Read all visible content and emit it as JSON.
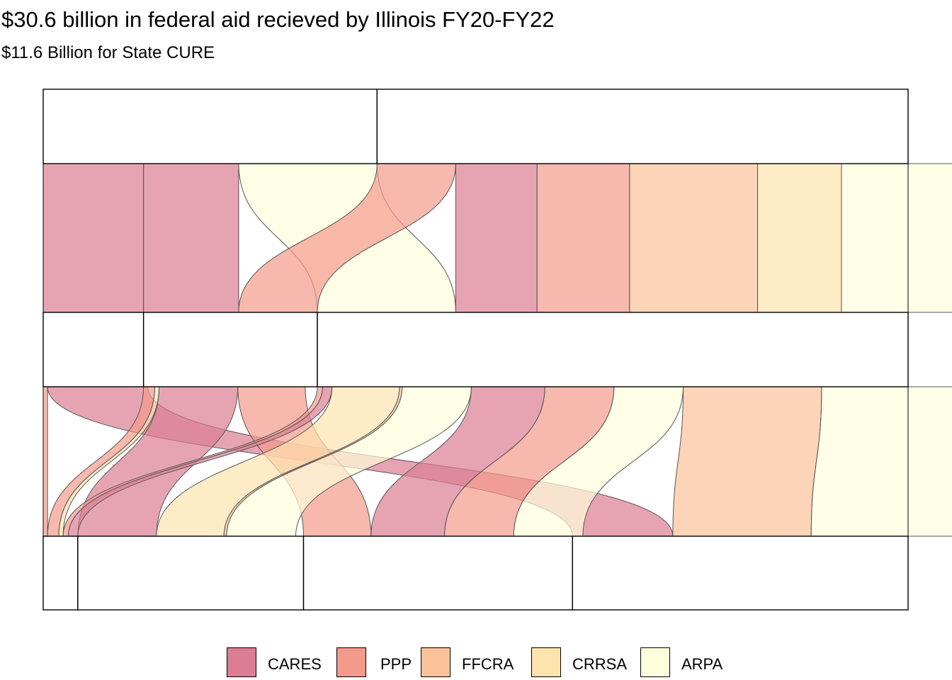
{
  "title": "$30.6 billion in federal aid recieved by Illinois FY20-FY22",
  "subtitle": "$11.6 Billion for State CURE",
  "legend": [
    {
      "label": "CARES",
      "color": "#dc7d93"
    },
    {
      "label": "PPP",
      "color": "#f49a8c"
    },
    {
      "label": "FFCRA",
      "color": "#fbc299"
    },
    {
      "label": "CRRSA",
      "color": "#fde4af"
    },
    {
      "label": "ARPA",
      "color": "#fffedb"
    }
  ],
  "chart_data": {
    "type": "alluvial",
    "title": "$30.6 billion in federal aid recieved by Illinois FY20-FY22",
    "subtitle": "$11.6 Billion for State CURE",
    "axes": 4,
    "axis_strata_fractions": [
      [
        0.386,
        0.614
      ],
      [
        0.116,
        0.201,
        0.683
      ],
      [
        0.116,
        0.201,
        0.683
      ],
      [
        0.04,
        0.261,
        0.311,
        0.388
      ]
    ],
    "fill_categories": [
      "CARES",
      "PPP",
      "FFCRA",
      "CRRSA",
      "ARPA"
    ],
    "flows_12": [
      {
        "from": 0,
        "to": 0,
        "fill": "CARES",
        "share": 0.116
      },
      {
        "from": 0,
        "to": 1,
        "fill": "CARES",
        "share": 0.11
      },
      {
        "from": 0,
        "to": 2,
        "fill": "ARPA",
        "share": 0.16
      },
      {
        "from": 1,
        "to": 1,
        "fill": "PPP",
        "share": 0.091
      },
      {
        "from": 1,
        "to": 2,
        "fill": "CARES",
        "share": 0.094
      },
      {
        "from": 1,
        "to": 2,
        "fill": "PPP",
        "share": 0.107
      },
      {
        "from": 1,
        "to": 2,
        "fill": "FFCRA",
        "share": 0.148
      },
      {
        "from": 1,
        "to": 2,
        "fill": "CRRSA",
        "share": 0.097
      },
      {
        "from": 1,
        "to": 2,
        "fill": "ARPA",
        "share": 0.167
      }
    ],
    "flows_34": [
      {
        "from": 0,
        "to": 3,
        "fill": "CARES",
        "share": 0.116
      },
      {
        "from": 1,
        "to": 0,
        "fill": "PPP",
        "share": 0.013
      },
      {
        "from": 1,
        "to": 0,
        "fill": "CRRSA",
        "share": 0.005
      },
      {
        "from": 1,
        "to": 1,
        "fill": "CARES",
        "share": 0.091
      },
      {
        "from": 1,
        "to": 2,
        "fill": "PPP",
        "share": 0.078
      },
      {
        "from": 0,
        "to": 0,
        "fill": "PPP",
        "share": 0.005
      },
      {
        "from": 2,
        "to": 0,
        "fill": "PPP",
        "share": 0.006
      },
      {
        "from": 2,
        "to": 0,
        "fill": "CARES",
        "share": 0.011
      },
      {
        "from": 2,
        "to": 1,
        "fill": "CRRSA",
        "share": 0.078
      },
      {
        "from": 2,
        "to": 1,
        "fill": "FFCRA",
        "share": 0.003
      },
      {
        "from": 2,
        "to": 2,
        "fill": "CARES",
        "share": 0.085
      },
      {
        "from": 2,
        "to": 1,
        "fill": "ARPA",
        "share": 0.08
      },
      {
        "from": 2,
        "to": 2,
        "fill": "PPP",
        "share": 0.08
      },
      {
        "from": 2,
        "to": 2,
        "fill": "ARPA",
        "share": 0.08
      },
      {
        "from": 2,
        "to": 3,
        "fill": "FFCRA",
        "share": 0.16
      },
      {
        "from": 2,
        "to": 3,
        "fill": "ARPA",
        "share": 0.27
      }
    ],
    "legend_position": "bottom",
    "grid": false
  }
}
